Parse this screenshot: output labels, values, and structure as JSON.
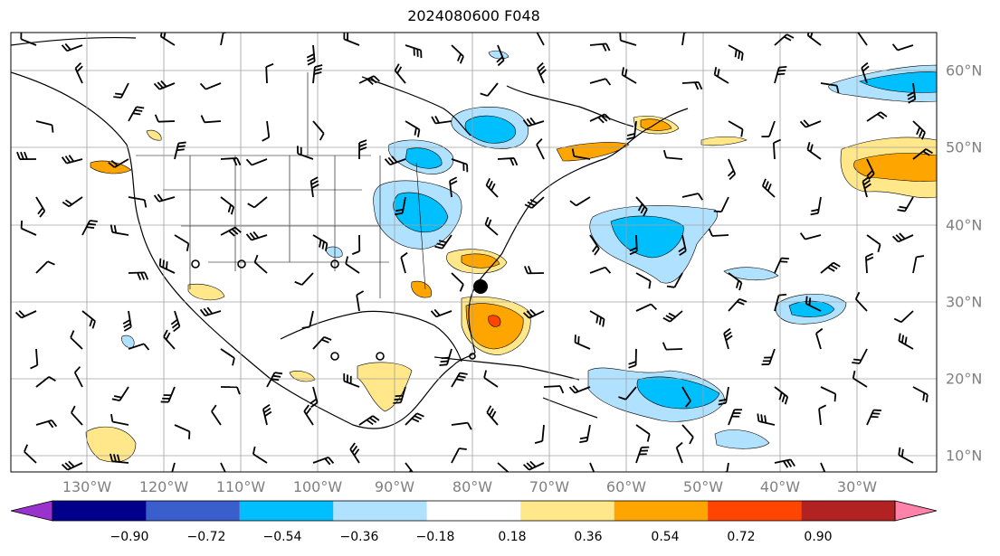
{
  "title": "2024080600 F048",
  "lon_labels": [
    "130°W",
    "120°W",
    "110°W",
    "100°W",
    "90°W",
    "80°W",
    "70°W",
    "60°W",
    "50°W",
    "40°W",
    "30°W"
  ],
  "lat_labels": [
    "60°N",
    "50°N",
    "40°N",
    "30°N",
    "20°N",
    "10°N"
  ],
  "colorbar": {
    "ticks": [
      "−0.90",
      "−0.72",
      "−0.54",
      "−0.36",
      "−0.18",
      "0.18",
      "0.36",
      "0.54",
      "0.72",
      "0.90"
    ],
    "colors": [
      "#9a32cd",
      "#00008b",
      "#3a5fcd",
      "#00bfff",
      "#b0e2ff",
      "#ffffff",
      "#ffe78a",
      "#ffa500",
      "#ff4500",
      "#b22222",
      "#ff82ab"
    ]
  },
  "map": {
    "projection": "equirectangular",
    "lon_range": [
      -137,
      -16
    ],
    "lat_range": [
      8,
      65
    ],
    "grid": true,
    "storm_center_marker": "filled-circle",
    "land_outline_color": "#000000"
  },
  "icons": [
    "storm-center-marker",
    "calm-wind-circle",
    "wind-barb"
  ]
}
